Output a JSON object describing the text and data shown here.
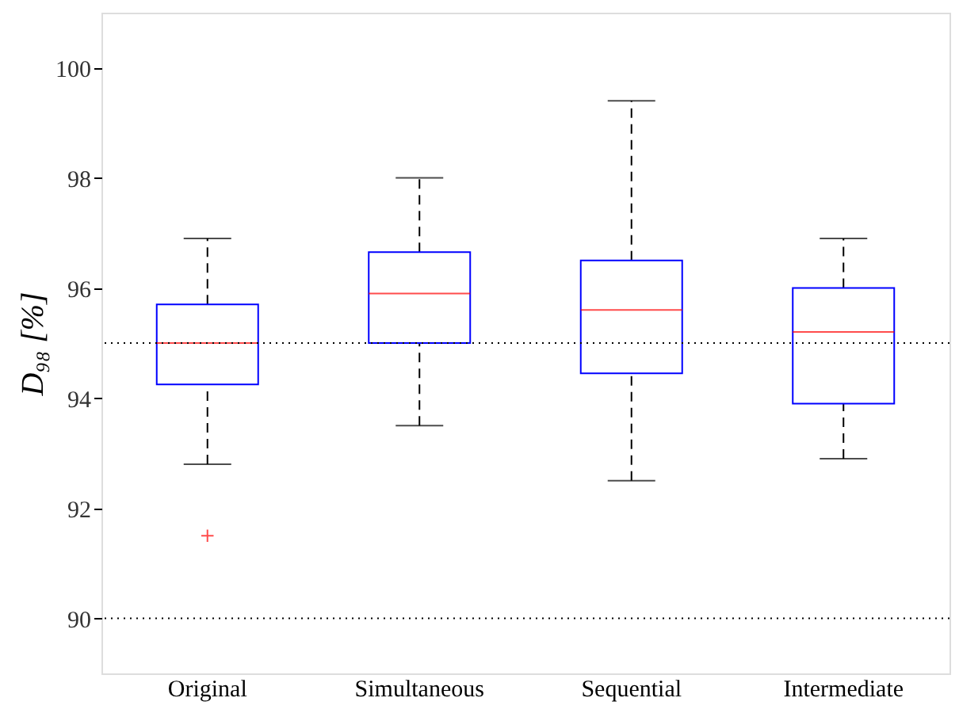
{
  "chart_data": {
    "type": "box",
    "ylabel": "D₉₈ [%]",
    "categories": [
      "Original",
      "Simultaneous",
      "Sequential",
      "Intermediate"
    ],
    "ylim": [
      89,
      101
    ],
    "yticks": [
      90,
      92,
      94,
      96,
      98,
      100
    ],
    "grid": false,
    "marker": "cross",
    "line_style": "dashed",
    "series": [
      {
        "color": "#0000ff",
        "boxes": [
          {
            "low": 92.8,
            "q1": 94.25,
            "median": 95.0,
            "q3": 95.7,
            "high": 96.9,
            "outliers": [
              91.5
            ]
          },
          {
            "low": 93.5,
            "q1": 95.0,
            "median": 95.9,
            "q3": 96.65,
            "high": 98.0
          },
          {
            "low": 92.5,
            "q1": 94.45,
            "median": 95.6,
            "q3": 96.5,
            "high": 99.4
          },
          {
            "low": 92.9,
            "q1": 93.9,
            "median": 95.2,
            "q3": 96.0,
            "high": 96.9
          }
        ]
      }
    ],
    "ref_lines": [
      {
        "axis": "y",
        "value": 95,
        "line_style": "dotted"
      },
      {
        "axis": "y",
        "value": 90,
        "line_style": "dotted"
      }
    ]
  }
}
